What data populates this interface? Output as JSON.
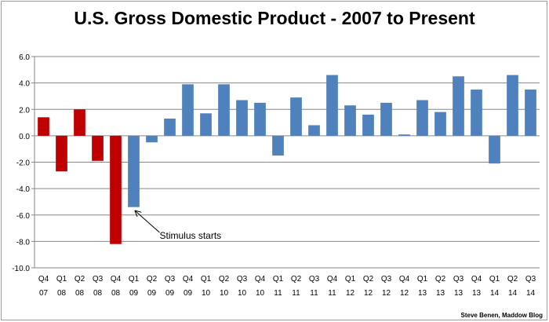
{
  "chart_data": {
    "type": "bar",
    "title": "U.S. Gross Domestic Product - 2007 to Present",
    "xlabel": "",
    "ylabel": "",
    "ylim": [
      -10,
      6
    ],
    "y_ticks": [
      "6.0",
      "4.0",
      "2.0",
      "0.0",
      "-2.0",
      "-4.0",
      "-6.0",
      "-8.0",
      "-10.0"
    ],
    "grid": true,
    "legend": "none",
    "categories": [
      [
        "Q4",
        "07"
      ],
      [
        "Q1",
        "08"
      ],
      [
        "Q2",
        "08"
      ],
      [
        "Q3",
        "08"
      ],
      [
        "Q4",
        "08"
      ],
      [
        "Q1",
        "09"
      ],
      [
        "Q2",
        "09"
      ],
      [
        "Q3",
        "09"
      ],
      [
        "Q4",
        "09"
      ],
      [
        "Q1",
        "10"
      ],
      [
        "Q2",
        "10"
      ],
      [
        "Q3",
        "10"
      ],
      [
        "Q4",
        "10"
      ],
      [
        "Q1",
        "11"
      ],
      [
        "Q2",
        "11"
      ],
      [
        "Q3",
        "11"
      ],
      [
        "Q4",
        "11"
      ],
      [
        "Q1",
        "12"
      ],
      [
        "Q2",
        "12"
      ],
      [
        "Q3",
        "12"
      ],
      [
        "Q4",
        "12"
      ],
      [
        "Q1",
        "13"
      ],
      [
        "Q2",
        "13"
      ],
      [
        "Q3",
        "13"
      ],
      [
        "Q4",
        "13"
      ],
      [
        "Q1",
        "14"
      ],
      [
        "Q2",
        "14"
      ],
      [
        "Q3",
        "14"
      ]
    ],
    "values": [
      1.4,
      -2.7,
      2.0,
      -1.9,
      -8.2,
      -5.4,
      -0.5,
      1.3,
      3.9,
      1.7,
      3.9,
      2.7,
      2.5,
      -1.5,
      2.9,
      0.8,
      4.6,
      2.3,
      1.6,
      2.5,
      0.1,
      2.7,
      1.8,
      4.5,
      3.5,
      -2.1,
      4.6,
      3.5
    ],
    "bar_colors": [
      "#c00000",
      "#c00000",
      "#c00000",
      "#c00000",
      "#c00000",
      "#4f81bd",
      "#4f81bd",
      "#4f81bd",
      "#4f81bd",
      "#4f81bd",
      "#4f81bd",
      "#4f81bd",
      "#4f81bd",
      "#4f81bd",
      "#4f81bd",
      "#4f81bd",
      "#4f81bd",
      "#4f81bd",
      "#4f81bd",
      "#4f81bd",
      "#4f81bd",
      "#4f81bd",
      "#4f81bd",
      "#4f81bd",
      "#4f81bd",
      "#4f81bd",
      "#4f81bd",
      "#4f81bd"
    ],
    "annotation": {
      "text": "Stimulus starts",
      "target_index": 5
    }
  },
  "credit": "Steve Benen, Maddow Blog",
  "colors": {
    "red": "#c00000",
    "blue": "#4f81bd",
    "grid": "#868686"
  }
}
